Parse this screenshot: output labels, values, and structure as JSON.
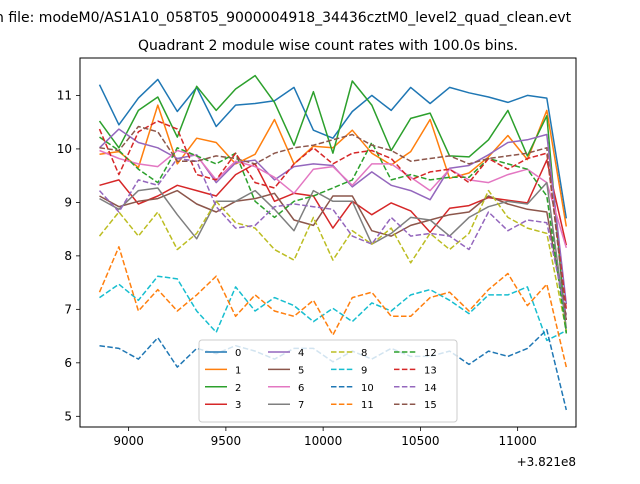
{
  "chart_data": {
    "type": "line",
    "suptitle": "n file: modeM0/AS1A10_058T05_9000004918_34436cztM0_level2_quad_clean.evt",
    "title": "Quadrant 2 module wise count rates with 100.0s bins.",
    "xlabel": "",
    "ylabel": "",
    "x_offset_label": "+3.821e8",
    "xlim": [
      8750,
      11300
    ],
    "ylim": [
      4.8,
      11.7
    ],
    "xticks": [
      9000,
      9500,
      10000,
      10500,
      11000
    ],
    "yticks": [
      5,
      6,
      7,
      8,
      9,
      10,
      11
    ],
    "x": [
      8850,
      8950,
      9050,
      9150,
      9250,
      9350,
      9450,
      9550,
      9650,
      9750,
      9850,
      9950,
      10050,
      10150,
      10250,
      10350,
      10450,
      10550,
      10650,
      10750,
      10850,
      10950,
      11050,
      11150,
      11250
    ],
    "series": [
      {
        "name": "0",
        "color": "#1f77b4",
        "dash": "solid",
        "values": [
          11.2,
          10.45,
          10.95,
          11.3,
          10.7,
          11.15,
          10.42,
          10.82,
          10.85,
          10.9,
          11.15,
          10.35,
          10.2,
          10.7,
          11.0,
          10.72,
          11.15,
          10.85,
          11.15,
          11.05,
          10.97,
          10.87,
          11.0,
          10.95,
          8.7
        ]
      },
      {
        "name": "1",
        "color": "#ff7f0e",
        "dash": "solid",
        "values": [
          9.9,
          9.95,
          9.65,
          10.82,
          9.72,
          10.2,
          10.12,
          9.72,
          9.9,
          10.55,
          9.72,
          10.05,
          10.02,
          10.35,
          9.92,
          9.7,
          9.95,
          10.55,
          9.45,
          9.55,
          9.85,
          10.25,
          9.8,
          10.72,
          8.55
        ]
      },
      {
        "name": "2",
        "color": "#2ca02c",
        "dash": "solid",
        "values": [
          10.52,
          10.02,
          10.72,
          10.97,
          10.22,
          11.17,
          10.72,
          11.12,
          11.37,
          10.87,
          10.07,
          11.07,
          9.92,
          11.27,
          10.82,
          9.97,
          10.57,
          10.67,
          9.87,
          9.85,
          10.17,
          10.72,
          9.87,
          10.62,
          6.55
        ]
      },
      {
        "name": "3",
        "color": "#d62728",
        "dash": "solid",
        "values": [
          9.32,
          9.42,
          8.97,
          9.12,
          9.32,
          9.22,
          9.12,
          9.52,
          9.72,
          9.02,
          9.17,
          9.12,
          8.52,
          9.02,
          8.77,
          8.99,
          8.84,
          8.44,
          8.89,
          8.94,
          9.09,
          9.04,
          8.99,
          9.79,
          8.2
        ]
      },
      {
        "name": "4",
        "color": "#9467bd",
        "dash": "solid",
        "values": [
          10.02,
          10.37,
          10.12,
          10.02,
          9.82,
          9.89,
          9.37,
          9.74,
          9.79,
          9.42,
          9.67,
          9.72,
          9.69,
          9.29,
          9.57,
          9.32,
          9.22,
          9.05,
          9.64,
          9.69,
          9.89,
          10.12,
          10.17,
          10.27,
          7.1
        ]
      },
      {
        "name": "5",
        "color": "#8c564b",
        "dash": "solid",
        "values": [
          9.12,
          8.92,
          9.02,
          9.07,
          9.22,
          8.97,
          8.82,
          9.02,
          9.07,
          9.17,
          8.67,
          8.57,
          9.12,
          9.12,
          8.47,
          8.37,
          8.57,
          8.67,
          8.77,
          8.82,
          9.12,
          8.97,
          8.87,
          8.82,
          6.8
        ]
      },
      {
        "name": "6",
        "color": "#e377c2",
        "dash": "solid",
        "values": [
          9.97,
          9.82,
          9.72,
          9.67,
          9.97,
          9.87,
          9.42,
          9.77,
          9.67,
          9.47,
          9.17,
          9.62,
          9.67,
          9.32,
          9.72,
          9.72,
          9.47,
          9.22,
          9.62,
          9.42,
          9.37,
          9.52,
          9.62,
          9.37,
          8.15
        ]
      },
      {
        "name": "7",
        "color": "#7f7f7f",
        "dash": "solid",
        "values": [
          9.07,
          8.87,
          9.22,
          9.27,
          8.77,
          8.32,
          9.02,
          9.02,
          9.22,
          8.87,
          8.47,
          9.22,
          9.02,
          9.02,
          8.22,
          8.42,
          8.72,
          8.67,
          8.37,
          8.72,
          8.92,
          9.02,
          8.97,
          9.37,
          6.65
        ]
      },
      {
        "name": "8",
        "color": "#bcbd22",
        "dash": "dashed",
        "values": [
          8.37,
          8.82,
          8.37,
          8.82,
          8.12,
          8.42,
          9.02,
          8.62,
          8.52,
          8.12,
          7.92,
          8.72,
          7.92,
          8.47,
          8.22,
          8.52,
          7.87,
          8.42,
          8.12,
          8.42,
          9.22,
          8.72,
          8.52,
          8.42,
          6.6
        ]
      },
      {
        "name": "9",
        "color": "#17becf",
        "dash": "dashed",
        "values": [
          7.22,
          7.47,
          7.17,
          7.62,
          7.57,
          6.97,
          6.57,
          7.42,
          6.97,
          7.22,
          7.07,
          6.77,
          7.02,
          6.77,
          7.12,
          6.97,
          7.27,
          7.37,
          7.17,
          6.92,
          7.27,
          7.27,
          7.42,
          6.42,
          6.6
        ]
      },
      {
        "name": "10",
        "color": "#1f77b4",
        "dash": "dashed",
        "values": [
          6.32,
          6.27,
          6.07,
          6.47,
          5.92,
          6.27,
          6.17,
          6.32,
          6.22,
          6.07,
          6.27,
          6.27,
          6.02,
          6.22,
          6.07,
          6.27,
          6.12,
          6.12,
          6.22,
          5.97,
          6.22,
          6.12,
          6.27,
          6.62,
          5.12
        ]
      },
      {
        "name": "11",
        "color": "#ff7f0e",
        "dash": "dashed",
        "values": [
          7.32,
          8.17,
          6.97,
          7.37,
          6.97,
          7.27,
          7.62,
          6.87,
          7.27,
          6.97,
          6.87,
          7.17,
          6.52,
          7.22,
          7.32,
          6.87,
          6.87,
          7.22,
          7.32,
          6.97,
          7.37,
          7.67,
          7.07,
          7.47,
          5.92
        ]
      },
      {
        "name": "12",
        "color": "#2ca02c",
        "dash": "dashed",
        "values": [
          10.22,
          9.97,
          9.62,
          9.37,
          10.02,
          9.87,
          9.72,
          9.92,
          9.02,
          8.72,
          9.02,
          9.12,
          9.27,
          9.42,
          10.12,
          9.42,
          9.52,
          9.42,
          9.47,
          9.47,
          9.82,
          9.72,
          9.62,
          9.12,
          6.55
        ]
      },
      {
        "name": "13",
        "color": "#d62728",
        "dash": "dashed",
        "values": [
          10.37,
          9.52,
          10.32,
          10.52,
          10.37,
          9.52,
          9.42,
          9.92,
          9.37,
          9.27,
          9.72,
          10.02,
          9.72,
          9.92,
          9.97,
          9.82,
          9.42,
          9.57,
          9.62,
          9.37,
          9.82,
          9.62,
          9.82,
          9.92,
          7.0
        ]
      },
      {
        "name": "14",
        "color": "#9467bd",
        "dash": "dashed",
        "values": [
          9.22,
          8.82,
          9.42,
          9.32,
          9.82,
          9.77,
          8.92,
          8.52,
          8.57,
          8.92,
          8.97,
          8.92,
          8.87,
          8.37,
          8.22,
          8.72,
          8.37,
          8.42,
          8.37,
          8.12,
          8.82,
          8.47,
          8.67,
          8.62,
          6.9
        ]
      },
      {
        "name": "15",
        "color": "#8c564b",
        "dash": "dashed",
        "values": [
          10.02,
          9.97,
          10.42,
          10.32,
          9.77,
          9.77,
          9.87,
          9.82,
          9.72,
          9.92,
          10.02,
          10.07,
          10.17,
          10.27,
          10.07,
          9.97,
          9.77,
          9.82,
          9.87,
          9.72,
          9.82,
          9.87,
          9.92,
          10.02,
          6.8
        ]
      }
    ],
    "legend": {
      "placement": "lower-center",
      "ncol": 4
    }
  }
}
